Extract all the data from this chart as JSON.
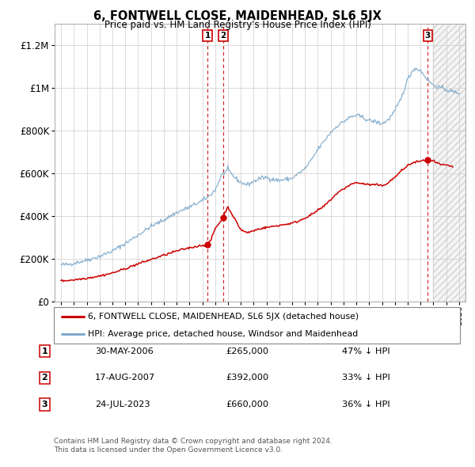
{
  "title": "6, FONTWELL CLOSE, MAIDENHEAD, SL6 5JX",
  "subtitle": "Price paid vs. HM Land Registry's House Price Index (HPI)",
  "ylim": [
    0,
    1300000
  ],
  "yticks": [
    0,
    200000,
    400000,
    600000,
    800000,
    1000000,
    1200000
  ],
  "ytick_labels": [
    "£0",
    "£200K",
    "£400K",
    "£600K",
    "£800K",
    "£1M",
    "£1.2M"
  ],
  "red_line_color": "#cc0000",
  "blue_line_color": "#7faacc",
  "vline_color": "#cc0000",
  "transactions": [
    {
      "date_num": 2006.41,
      "price": 265000,
      "label": "1"
    },
    {
      "date_num": 2007.63,
      "price": 392000,
      "label": "2"
    },
    {
      "date_num": 2023.56,
      "price": 660000,
      "label": "3"
    }
  ],
  "legend_entries": [
    {
      "label": "6, FONTWELL CLOSE, MAIDENHEAD, SL6 5JX (detached house)",
      "color": "#cc0000"
    },
    {
      "label": "HPI: Average price, detached house, Windsor and Maidenhead",
      "color": "#7faacc"
    }
  ],
  "table_rows": [
    {
      "num": "1",
      "date": "30-MAY-2006",
      "price": "£265,000",
      "change": "47% ↓ HPI"
    },
    {
      "num": "2",
      "date": "17-AUG-2007",
      "price": "£392,000",
      "change": "33% ↓ HPI"
    },
    {
      "num": "3",
      "date": "24-JUL-2023",
      "price": "£660,000",
      "change": "36% ↓ HPI"
    }
  ],
  "footer": "Contains HM Land Registry data © Crown copyright and database right 2024.\nThis data is licensed under the Open Government Licence v3.0.",
  "xmin": 1994.5,
  "xmax": 2026.5,
  "hatch_start": 2024.0
}
